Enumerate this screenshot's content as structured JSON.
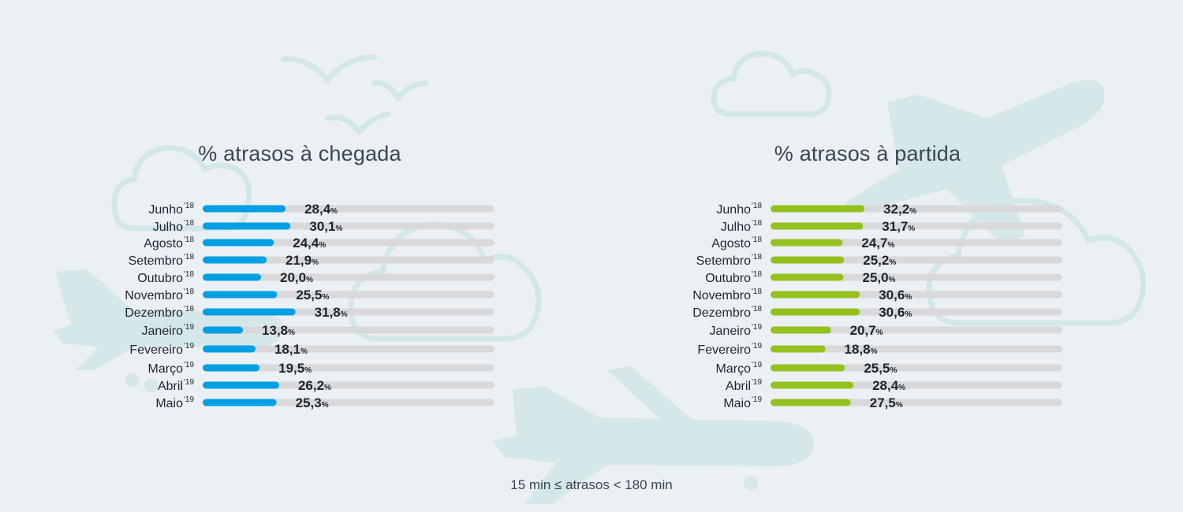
{
  "chart_data": [
    {
      "type": "bar",
      "orientation": "horizontal",
      "title": "% atrasos à chegada",
      "categories": [
        "Junho",
        "Julho",
        "Agosto",
        "Setembro",
        "Outubro",
        "Novembro",
        "Dezembro",
        "Janeiro",
        "Fevereiro",
        "Março",
        "Abril",
        "Maio"
      ],
      "category_years": [
        "'18",
        "'18",
        "'18",
        "'18",
        "'18",
        "'18",
        "'18",
        "'19",
        "'19",
        "'19",
        "'19",
        "'19"
      ],
      "values": [
        28.4,
        30.1,
        24.4,
        21.9,
        20.0,
        25.5,
        31.8,
        13.8,
        18.1,
        19.5,
        26.2,
        25.3
      ],
      "value_labels": [
        "28,4",
        "30,1",
        "24,4",
        "21,9",
        "20,0",
        "25,5",
        "31,8",
        "13,8",
        "18,1",
        "19,5",
        "26,2",
        "25,3"
      ],
      "unit": "%",
      "xlim": [
        0,
        100
      ],
      "color": "#009fe3",
      "track_color": "#d9d9d9"
    },
    {
      "type": "bar",
      "orientation": "horizontal",
      "title": "% atrasos à partida",
      "categories": [
        "Junho",
        "Julho",
        "Agosto",
        "Setembro",
        "Outubro",
        "Novembro",
        "Dezembro",
        "Janeiro",
        "Fevereiro",
        "Março",
        "Abril",
        "Maio"
      ],
      "category_years": [
        "'18",
        "'18",
        "'18",
        "'18",
        "'18",
        "'18",
        "'18",
        "'19",
        "'19",
        "'19",
        "'19",
        "'19"
      ],
      "values": [
        32.2,
        31.7,
        24.7,
        25.2,
        25.0,
        30.6,
        30.6,
        20.7,
        18.8,
        25.5,
        28.4,
        27.5
      ],
      "value_labels": [
        "32,2",
        "31,7",
        "24,7",
        "25,2",
        "25,0",
        "30,6",
        "30,6",
        "20,7",
        "18,8",
        "25,5",
        "28,4",
        "27,5"
      ],
      "unit": "%",
      "xlim": [
        0,
        100
      ],
      "color": "#95c11f",
      "track_color": "#d9d9d9"
    }
  ],
  "footnote": "15 min ≤ atrasos < 180 min",
  "background": {
    "color": "#ebf0f4",
    "decoration_color": "#d3e6e8",
    "decorations": [
      "plane-icon",
      "cloud-icon",
      "bird-icon"
    ]
  }
}
